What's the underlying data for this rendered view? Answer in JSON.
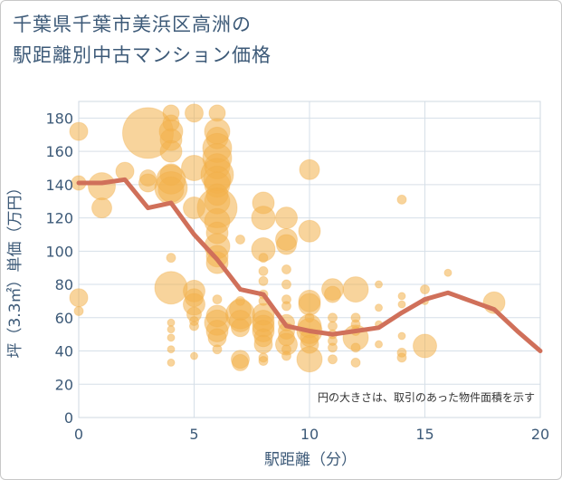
{
  "title_line1": "千葉県千葉市美浜区高洲の",
  "title_line2": "駅距離別中古マンション価格",
  "chart_data": {
    "type": "scatter+line",
    "xlabel": "駅距離（分）",
    "ylabel": "坪（3.3㎡）単価（万円）",
    "xlim": [
      0,
      20
    ],
    "ylim": [
      0,
      190
    ],
    "xticks": [
      0,
      5,
      10,
      15,
      20
    ],
    "yticks": [
      0,
      20,
      40,
      60,
      80,
      100,
      120,
      140,
      160,
      180
    ],
    "grid": true,
    "note": "円の大きさは、取引のあった物件面積を示す",
    "colors": {
      "bubble": "#f2b04a",
      "line": "#d0705a",
      "grid": "#d6dfe8",
      "text": "#3d5a78"
    },
    "line": {
      "x": [
        0,
        1,
        2,
        3,
        4,
        5,
        6,
        7,
        8,
        9,
        10,
        11,
        12,
        13,
        14,
        15,
        16,
        17,
        18,
        19,
        20
      ],
      "y": [
        141,
        141,
        143,
        126,
        129,
        110,
        95,
        77,
        74,
        55,
        52,
        50,
        52,
        54,
        63,
        71,
        75,
        70,
        65,
        52,
        40
      ]
    },
    "bubbles": [
      {
        "x": 0,
        "y": 172,
        "s": 10
      },
      {
        "x": 0,
        "y": 141,
        "s": 8
      },
      {
        "x": 0,
        "y": 72,
        "s": 10
      },
      {
        "x": 0,
        "y": 64,
        "s": 5
      },
      {
        "x": 1,
        "y": 139,
        "s": 15
      },
      {
        "x": 1,
        "y": 126,
        "s": 11
      },
      {
        "x": 2,
        "y": 148,
        "s": 10
      },
      {
        "x": 3,
        "y": 171,
        "s": 28
      },
      {
        "x": 3,
        "y": 144,
        "s": 9
      },
      {
        "x": 3,
        "y": 141,
        "s": 10
      },
      {
        "x": 4,
        "y": 183,
        "s": 9
      },
      {
        "x": 4,
        "y": 177,
        "s": 9
      },
      {
        "x": 4,
        "y": 172,
        "s": 13
      },
      {
        "x": 4,
        "y": 167,
        "s": 12
      },
      {
        "x": 4,
        "y": 160,
        "s": 12
      },
      {
        "x": 4,
        "y": 146,
        "s": 12
      },
      {
        "x": 4,
        "y": 143,
        "s": 16
      },
      {
        "x": 4,
        "y": 138,
        "s": 18
      },
      {
        "x": 4,
        "y": 137,
        "s": 14
      },
      {
        "x": 4,
        "y": 96,
        "s": 5
      },
      {
        "x": 4,
        "y": 78,
        "s": 18
      },
      {
        "x": 4,
        "y": 57,
        "s": 4
      },
      {
        "x": 4,
        "y": 53,
        "s": 4
      },
      {
        "x": 4,
        "y": 48,
        "s": 4
      },
      {
        "x": 4,
        "y": 41,
        "s": 4
      },
      {
        "x": 4,
        "y": 33,
        "s": 4
      },
      {
        "x": 5,
        "y": 183,
        "s": 10
      },
      {
        "x": 5,
        "y": 150,
        "s": 14
      },
      {
        "x": 5,
        "y": 126,
        "s": 12
      },
      {
        "x": 5,
        "y": 76,
        "s": 12
      },
      {
        "x": 5,
        "y": 72,
        "s": 10
      },
      {
        "x": 5,
        "y": 68,
        "s": 12
      },
      {
        "x": 5,
        "y": 62,
        "s": 8
      },
      {
        "x": 5,
        "y": 58,
        "s": 5
      },
      {
        "x": 5,
        "y": 55,
        "s": 5
      },
      {
        "x": 5,
        "y": 37,
        "s": 4
      },
      {
        "x": 6,
        "y": 183,
        "s": 9
      },
      {
        "x": 6,
        "y": 172,
        "s": 14
      },
      {
        "x": 6,
        "y": 168,
        "s": 12
      },
      {
        "x": 6,
        "y": 162,
        "s": 16
      },
      {
        "x": 6,
        "y": 156,
        "s": 16
      },
      {
        "x": 6,
        "y": 151,
        "s": 14
      },
      {
        "x": 6,
        "y": 146,
        "s": 18
      },
      {
        "x": 6,
        "y": 143,
        "s": 15
      },
      {
        "x": 6,
        "y": 140,
        "s": 14
      },
      {
        "x": 6,
        "y": 134,
        "s": 12
      },
      {
        "x": 6,
        "y": 130,
        "s": 14
      },
      {
        "x": 6,
        "y": 126,
        "s": 22
      },
      {
        "x": 6,
        "y": 118,
        "s": 14
      },
      {
        "x": 6,
        "y": 111,
        "s": 12
      },
      {
        "x": 6,
        "y": 103,
        "s": 14
      },
      {
        "x": 6,
        "y": 97,
        "s": 12
      },
      {
        "x": 6,
        "y": 93,
        "s": 12
      },
      {
        "x": 6,
        "y": 71,
        "s": 5
      },
      {
        "x": 6,
        "y": 61,
        "s": 12
      },
      {
        "x": 6,
        "y": 57,
        "s": 14
      },
      {
        "x": 6,
        "y": 52,
        "s": 12
      },
      {
        "x": 6,
        "y": 48,
        "s": 10
      },
      {
        "x": 6,
        "y": 41,
        "s": 5
      },
      {
        "x": 7,
        "y": 107,
        "s": 5
      },
      {
        "x": 7,
        "y": 70,
        "s": 5
      },
      {
        "x": 7,
        "y": 65,
        "s": 12
      },
      {
        "x": 7,
        "y": 62,
        "s": 16
      },
      {
        "x": 7,
        "y": 58,
        "s": 12
      },
      {
        "x": 7,
        "y": 54,
        "s": 10
      },
      {
        "x": 7,
        "y": 35,
        "s": 10
      },
      {
        "x": 7,
        "y": 33,
        "s": 9
      },
      {
        "x": 8,
        "y": 129,
        "s": 12
      },
      {
        "x": 8,
        "y": 120,
        "s": 13
      },
      {
        "x": 8,
        "y": 101,
        "s": 13
      },
      {
        "x": 8,
        "y": 96,
        "s": 5
      },
      {
        "x": 8,
        "y": 88,
        "s": 5
      },
      {
        "x": 8,
        "y": 82,
        "s": 5
      },
      {
        "x": 8,
        "y": 74,
        "s": 5
      },
      {
        "x": 8,
        "y": 70,
        "s": 5
      },
      {
        "x": 8,
        "y": 62,
        "s": 12
      },
      {
        "x": 8,
        "y": 58,
        "s": 12
      },
      {
        "x": 8,
        "y": 55,
        "s": 12
      },
      {
        "x": 8,
        "y": 52,
        "s": 12
      },
      {
        "x": 8,
        "y": 48,
        "s": 10
      },
      {
        "x": 8,
        "y": 44,
        "s": 10
      },
      {
        "x": 8,
        "y": 36,
        "s": 5
      },
      {
        "x": 8,
        "y": 34,
        "s": 5
      },
      {
        "x": 9,
        "y": 120,
        "s": 12
      },
      {
        "x": 9,
        "y": 107,
        "s": 12
      },
      {
        "x": 9,
        "y": 104,
        "s": 11
      },
      {
        "x": 9,
        "y": 89,
        "s": 5
      },
      {
        "x": 9,
        "y": 80,
        "s": 5
      },
      {
        "x": 9,
        "y": 71,
        "s": 5
      },
      {
        "x": 9,
        "y": 67,
        "s": 5
      },
      {
        "x": 9,
        "y": 57,
        "s": 9
      },
      {
        "x": 9,
        "y": 52,
        "s": 9
      },
      {
        "x": 9,
        "y": 48,
        "s": 9
      },
      {
        "x": 9,
        "y": 44,
        "s": 12
      },
      {
        "x": 9,
        "y": 41,
        "s": 5
      },
      {
        "x": 9,
        "y": 37,
        "s": 5
      },
      {
        "x": 10,
        "y": 149,
        "s": 11
      },
      {
        "x": 10,
        "y": 112,
        "s": 12
      },
      {
        "x": 10,
        "y": 70,
        "s": 12
      },
      {
        "x": 10,
        "y": 68,
        "s": 12
      },
      {
        "x": 10,
        "y": 60,
        "s": 5
      },
      {
        "x": 10,
        "y": 55,
        "s": 13
      },
      {
        "x": 10,
        "y": 52,
        "s": 14
      },
      {
        "x": 10,
        "y": 48,
        "s": 10
      },
      {
        "x": 10,
        "y": 44,
        "s": 10
      },
      {
        "x": 10,
        "y": 35,
        "s": 14
      },
      {
        "x": 11,
        "y": 77,
        "s": 12
      },
      {
        "x": 11,
        "y": 74,
        "s": 9
      },
      {
        "x": 11,
        "y": 60,
        "s": 5
      },
      {
        "x": 11,
        "y": 55,
        "s": 5
      },
      {
        "x": 11,
        "y": 50,
        "s": 5
      },
      {
        "x": 11,
        "y": 46,
        "s": 5
      },
      {
        "x": 11,
        "y": 42,
        "s": 5
      },
      {
        "x": 11,
        "y": 35,
        "s": 5
      },
      {
        "x": 12,
        "y": 77,
        "s": 14
      },
      {
        "x": 12,
        "y": 60,
        "s": 5
      },
      {
        "x": 12,
        "y": 56,
        "s": 5
      },
      {
        "x": 12,
        "y": 52,
        "s": 5
      },
      {
        "x": 12,
        "y": 48,
        "s": 14
      },
      {
        "x": 12,
        "y": 42,
        "s": 5
      },
      {
        "x": 12,
        "y": 33,
        "s": 5
      },
      {
        "x": 13,
        "y": 80,
        "s": 4
      },
      {
        "x": 13,
        "y": 66,
        "s": 4
      },
      {
        "x": 13,
        "y": 56,
        "s": 4
      },
      {
        "x": 13,
        "y": 44,
        "s": 4
      },
      {
        "x": 14,
        "y": 131,
        "s": 5
      },
      {
        "x": 14,
        "y": 73,
        "s": 4
      },
      {
        "x": 14,
        "y": 68,
        "s": 4
      },
      {
        "x": 14,
        "y": 49,
        "s": 4
      },
      {
        "x": 14,
        "y": 39,
        "s": 5
      },
      {
        "x": 14,
        "y": 36,
        "s": 5
      },
      {
        "x": 15,
        "y": 77,
        "s": 5
      },
      {
        "x": 15,
        "y": 70,
        "s": 4
      },
      {
        "x": 15,
        "y": 43,
        "s": 13
      },
      {
        "x": 16,
        "y": 87,
        "s": 4
      },
      {
        "x": 18,
        "y": 69,
        "s": 12
      }
    ]
  }
}
